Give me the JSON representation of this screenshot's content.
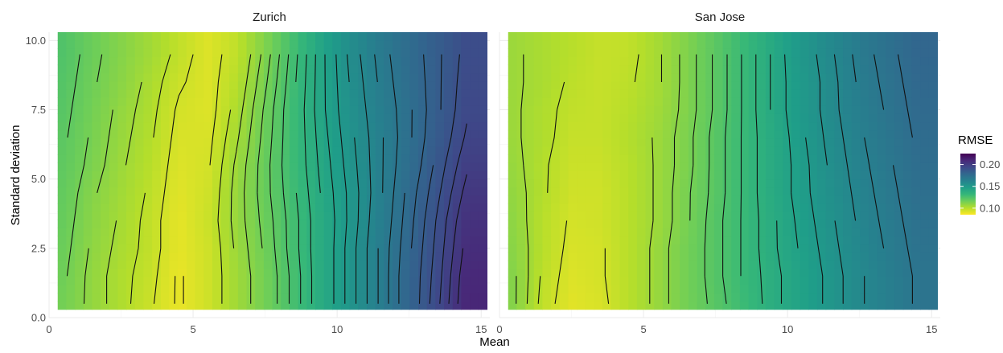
{
  "chart_data": {
    "type": "heatmap",
    "facets": [
      "Zurich",
      "San Jose"
    ],
    "xlabel": "Mean",
    "ylabel": "Standard deviation",
    "x_ticks": [
      "0",
      "5",
      "10",
      "15"
    ],
    "y_ticks": [
      "0.0",
      "2.5",
      "5.0",
      "7.5",
      "10.0"
    ],
    "xlim": [
      0,
      15.3
    ],
    "ylim": [
      0,
      10.3
    ],
    "grid": true,
    "legend": {
      "title": "RMSE",
      "position": "right",
      "labels": [
        "0.20",
        "0.15",
        "0.10"
      ],
      "breaks": [
        0.2,
        0.15,
        0.1
      ],
      "range": [
        0.085,
        0.225
      ],
      "palette": [
        "#440154",
        "#482878",
        "#3e4989",
        "#31688e",
        "#26828e",
        "#1f9e89",
        "#35b779",
        "#6ece58",
        "#b5de2b",
        "#fde725"
      ]
    },
    "x_grid": [
      0.5,
      1.5,
      2.5,
      3.5,
      4.5,
      5.5,
      6.5,
      7.5,
      8.5,
      9.5,
      10.5,
      11.5,
      12.5,
      13.5,
      14.5
    ],
    "y_grid": [
      0.5,
      1.5,
      2.5,
      3.5,
      4.5,
      5.5,
      6.5,
      7.5,
      8.5,
      9.5
    ],
    "panels": [
      {
        "name": "Zurich",
        "rmse": [
          [
            0.115,
            0.108,
            0.102,
            0.096,
            0.089,
            0.095,
            0.105,
            0.115,
            0.127,
            0.14,
            0.153,
            0.166,
            0.18,
            0.194,
            0.21
          ],
          [
            0.116,
            0.108,
            0.102,
            0.097,
            0.089,
            0.095,
            0.105,
            0.115,
            0.127,
            0.14,
            0.153,
            0.166,
            0.18,
            0.193,
            0.209
          ],
          [
            0.117,
            0.109,
            0.103,
            0.098,
            0.09,
            0.095,
            0.106,
            0.116,
            0.128,
            0.14,
            0.153,
            0.166,
            0.179,
            0.192,
            0.207
          ],
          [
            0.118,
            0.11,
            0.104,
            0.098,
            0.09,
            0.096,
            0.107,
            0.117,
            0.128,
            0.14,
            0.152,
            0.165,
            0.178,
            0.191,
            0.205
          ],
          [
            0.119,
            0.111,
            0.105,
            0.099,
            0.091,
            0.095,
            0.107,
            0.118,
            0.129,
            0.141,
            0.152,
            0.164,
            0.177,
            0.189,
            0.202
          ],
          [
            0.12,
            0.113,
            0.106,
            0.1,
            0.092,
            0.094,
            0.106,
            0.118,
            0.13,
            0.142,
            0.153,
            0.164,
            0.175,
            0.187,
            0.199
          ],
          [
            0.121,
            0.114,
            0.107,
            0.101,
            0.093,
            0.093,
            0.104,
            0.117,
            0.13,
            0.143,
            0.154,
            0.164,
            0.174,
            0.185,
            0.196
          ],
          [
            0.122,
            0.115,
            0.108,
            0.102,
            0.094,
            0.092,
            0.102,
            0.116,
            0.13,
            0.144,
            0.155,
            0.165,
            0.174,
            0.184,
            0.194
          ],
          [
            0.123,
            0.116,
            0.11,
            0.103,
            0.096,
            0.092,
            0.1,
            0.114,
            0.129,
            0.144,
            0.156,
            0.166,
            0.175,
            0.184,
            0.193
          ],
          [
            0.124,
            0.117,
            0.111,
            0.105,
            0.098,
            0.092,
            0.098,
            0.112,
            0.128,
            0.144,
            0.157,
            0.167,
            0.176,
            0.184,
            0.192
          ]
        ]
      },
      {
        "name": "San Jose",
        "rmse": [
          [
            0.111,
            0.098,
            0.091,
            0.093,
            0.1,
            0.107,
            0.115,
            0.122,
            0.13,
            0.138,
            0.145,
            0.152,
            0.159,
            0.165,
            0.171
          ],
          [
            0.111,
            0.099,
            0.092,
            0.094,
            0.1,
            0.107,
            0.115,
            0.123,
            0.131,
            0.138,
            0.145,
            0.152,
            0.159,
            0.165,
            0.171
          ],
          [
            0.11,
            0.1,
            0.093,
            0.094,
            0.1,
            0.107,
            0.115,
            0.123,
            0.131,
            0.139,
            0.146,
            0.153,
            0.16,
            0.166,
            0.172
          ],
          [
            0.109,
            0.1,
            0.094,
            0.095,
            0.1,
            0.106,
            0.114,
            0.123,
            0.131,
            0.139,
            0.147,
            0.154,
            0.161,
            0.167,
            0.173
          ],
          [
            0.108,
            0.101,
            0.095,
            0.095,
            0.1,
            0.106,
            0.114,
            0.122,
            0.131,
            0.14,
            0.148,
            0.155,
            0.162,
            0.168,
            0.174
          ],
          [
            0.107,
            0.101,
            0.096,
            0.096,
            0.1,
            0.106,
            0.113,
            0.122,
            0.131,
            0.14,
            0.148,
            0.156,
            0.163,
            0.169,
            0.175
          ],
          [
            0.106,
            0.102,
            0.097,
            0.097,
            0.101,
            0.106,
            0.113,
            0.122,
            0.131,
            0.14,
            0.149,
            0.157,
            0.164,
            0.17,
            0.176
          ],
          [
            0.106,
            0.102,
            0.098,
            0.097,
            0.1,
            0.105,
            0.112,
            0.121,
            0.131,
            0.141,
            0.15,
            0.158,
            0.165,
            0.171,
            0.177
          ],
          [
            0.106,
            0.103,
            0.099,
            0.097,
            0.099,
            0.104,
            0.112,
            0.121,
            0.131,
            0.141,
            0.15,
            0.158,
            0.166,
            0.172,
            0.178
          ],
          [
            0.106,
            0.103,
            0.1,
            0.097,
            0.098,
            0.104,
            0.112,
            0.121,
            0.131,
            0.141,
            0.151,
            0.159,
            0.167,
            0.173,
            0.179
          ]
        ]
      }
    ]
  }
}
